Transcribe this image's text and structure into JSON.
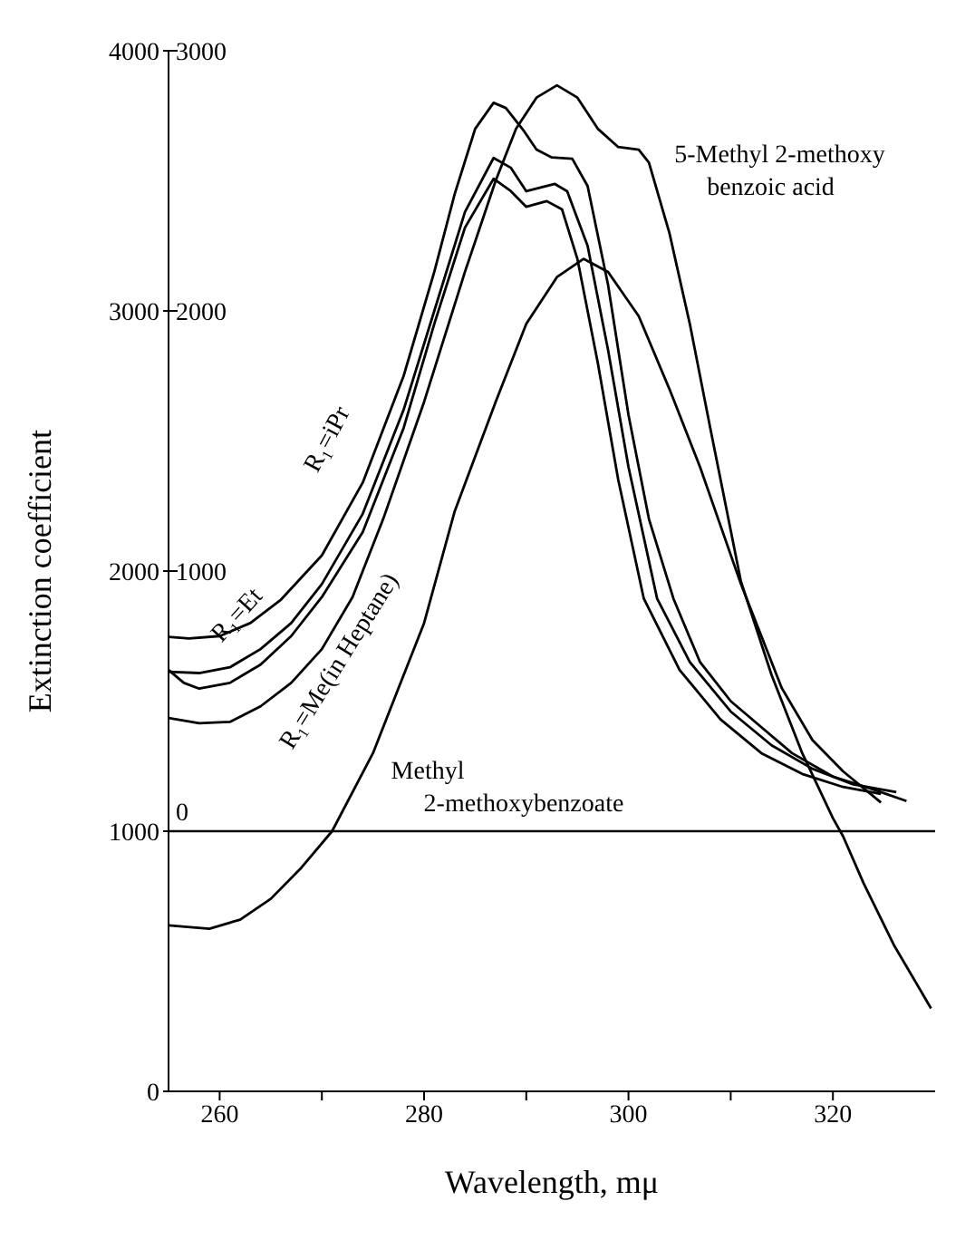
{
  "chart_data": {
    "type": "line",
    "xlabel": "Wavelength, mμ",
    "ylabel": "Extinction coefficient",
    "xlim": [
      255,
      330
    ],
    "xticks": [
      260,
      {
        "value": 270,
        "label": null
      },
      280,
      {
        "value": 290,
        "label": null
      },
      300,
      {
        "value": 310,
        "label": null
      },
      320
    ],
    "ylim": [
      0,
      4000
    ],
    "yticks": [
      0,
      1000,
      2000,
      3000,
      4000
    ],
    "y2lim": [
      -1000,
      3000
    ],
    "y2ticks": [
      0,
      1000,
      2000,
      3000
    ],
    "ref_lines": [
      {
        "axis": "y2",
        "value": 0,
        "label": null,
        "color": "#000000"
      }
    ],
    "marker": "none",
    "line_style": "solid",
    "series": [
      {
        "name": "5-Methyl 2-methoxy benzoic acid",
        "color": "#000000",
        "axis": "y2",
        "x": [
          255,
          258,
          261,
          264,
          267,
          270,
          273,
          276,
          280,
          284,
          287,
          289,
          291,
          293,
          295,
          297,
          299,
          301,
          302,
          304,
          306,
          308,
          311,
          314,
          317,
          320,
          321,
          323,
          326,
          329.6
        ],
        "values": [
          435,
          415,
          420,
          480,
          570,
          700,
          900,
          1200,
          1650,
          2150,
          2500,
          2700,
          2820,
          2867,
          2820,
          2700,
          2630,
          2620,
          2570,
          2300,
          1950,
          1550,
          960,
          600,
          300,
          50,
          -20,
          -200,
          -440,
          -681
        ]
      },
      {
        "name": "R₁=iPr",
        "color": "#000000",
        "axis": "y2",
        "x": [
          255,
          257,
          260,
          263,
          266,
          270,
          274,
          278,
          281,
          283,
          285,
          286.8,
          288,
          289.8,
          291,
          292.5,
          294.5,
          296,
          298,
          300,
          302,
          304.4,
          307,
          310,
          313,
          316,
          320,
          324,
          327.2
        ],
        "values": [
          747,
          741,
          750,
          800,
          890,
          1060,
          1340,
          1750,
          2150,
          2450,
          2700,
          2800,
          2780,
          2690,
          2620,
          2590,
          2585,
          2480,
          2100,
          1600,
          1200,
          894,
          650,
          500,
          400,
          300,
          210,
          160,
          116
        ]
      },
      {
        "name": "R₁=Et",
        "color": "#000000",
        "axis": "y2",
        "x": [
          255,
          258,
          261,
          264,
          267,
          270,
          274,
          278,
          281,
          284,
          286.8,
          288.5,
          290,
          292.8,
          294,
          296,
          298,
          300,
          302.8,
          306,
          310,
          314,
          318,
          322,
          326.2
        ],
        "values": [
          613,
          608,
          630,
          700,
          800,
          950,
          1220,
          1620,
          2000,
          2380,
          2588,
          2550,
          2460,
          2488,
          2460,
          2250,
          1850,
          1400,
          894,
          650,
          460,
          330,
          240,
          180,
          150
        ]
      },
      {
        "name": "R₁=Me(in Heptane)",
        "color": "#000000",
        "axis": "y2",
        "x": [
          255,
          256.5,
          258,
          261,
          264,
          267,
          270,
          274,
          278,
          281,
          284,
          286.8,
          288.5,
          290,
          292,
          293.5,
          295,
          297,
          299,
          301.5,
          305,
          309,
          313,
          317,
          321,
          324.7
        ],
        "values": [
          620,
          570,
          548,
          570,
          640,
          750,
          900,
          1150,
          1550,
          1950,
          2320,
          2508,
          2460,
          2400,
          2422,
          2390,
          2200,
          1800,
          1350,
          894,
          620,
          430,
          300,
          220,
          170,
          143
        ]
      },
      {
        "name": "Methyl 2-methoxybenzoate",
        "color": "#000000",
        "x": [
          255,
          259,
          262,
          265,
          268,
          271,
          275,
          280,
          283,
          287,
          290,
          293,
          295.6,
          298,
          301,
          304,
          307,
          311,
          315,
          318,
          321,
          324.7
        ],
        "values": [
          638,
          625,
          660,
          740,
          860,
          1000,
          1300,
          1800,
          2230,
          2650,
          2950,
          3130,
          3200,
          3150,
          2980,
          2700,
          2400,
          1950,
          1550,
          1350,
          1230,
          1110
        ]
      }
    ]
  }
}
